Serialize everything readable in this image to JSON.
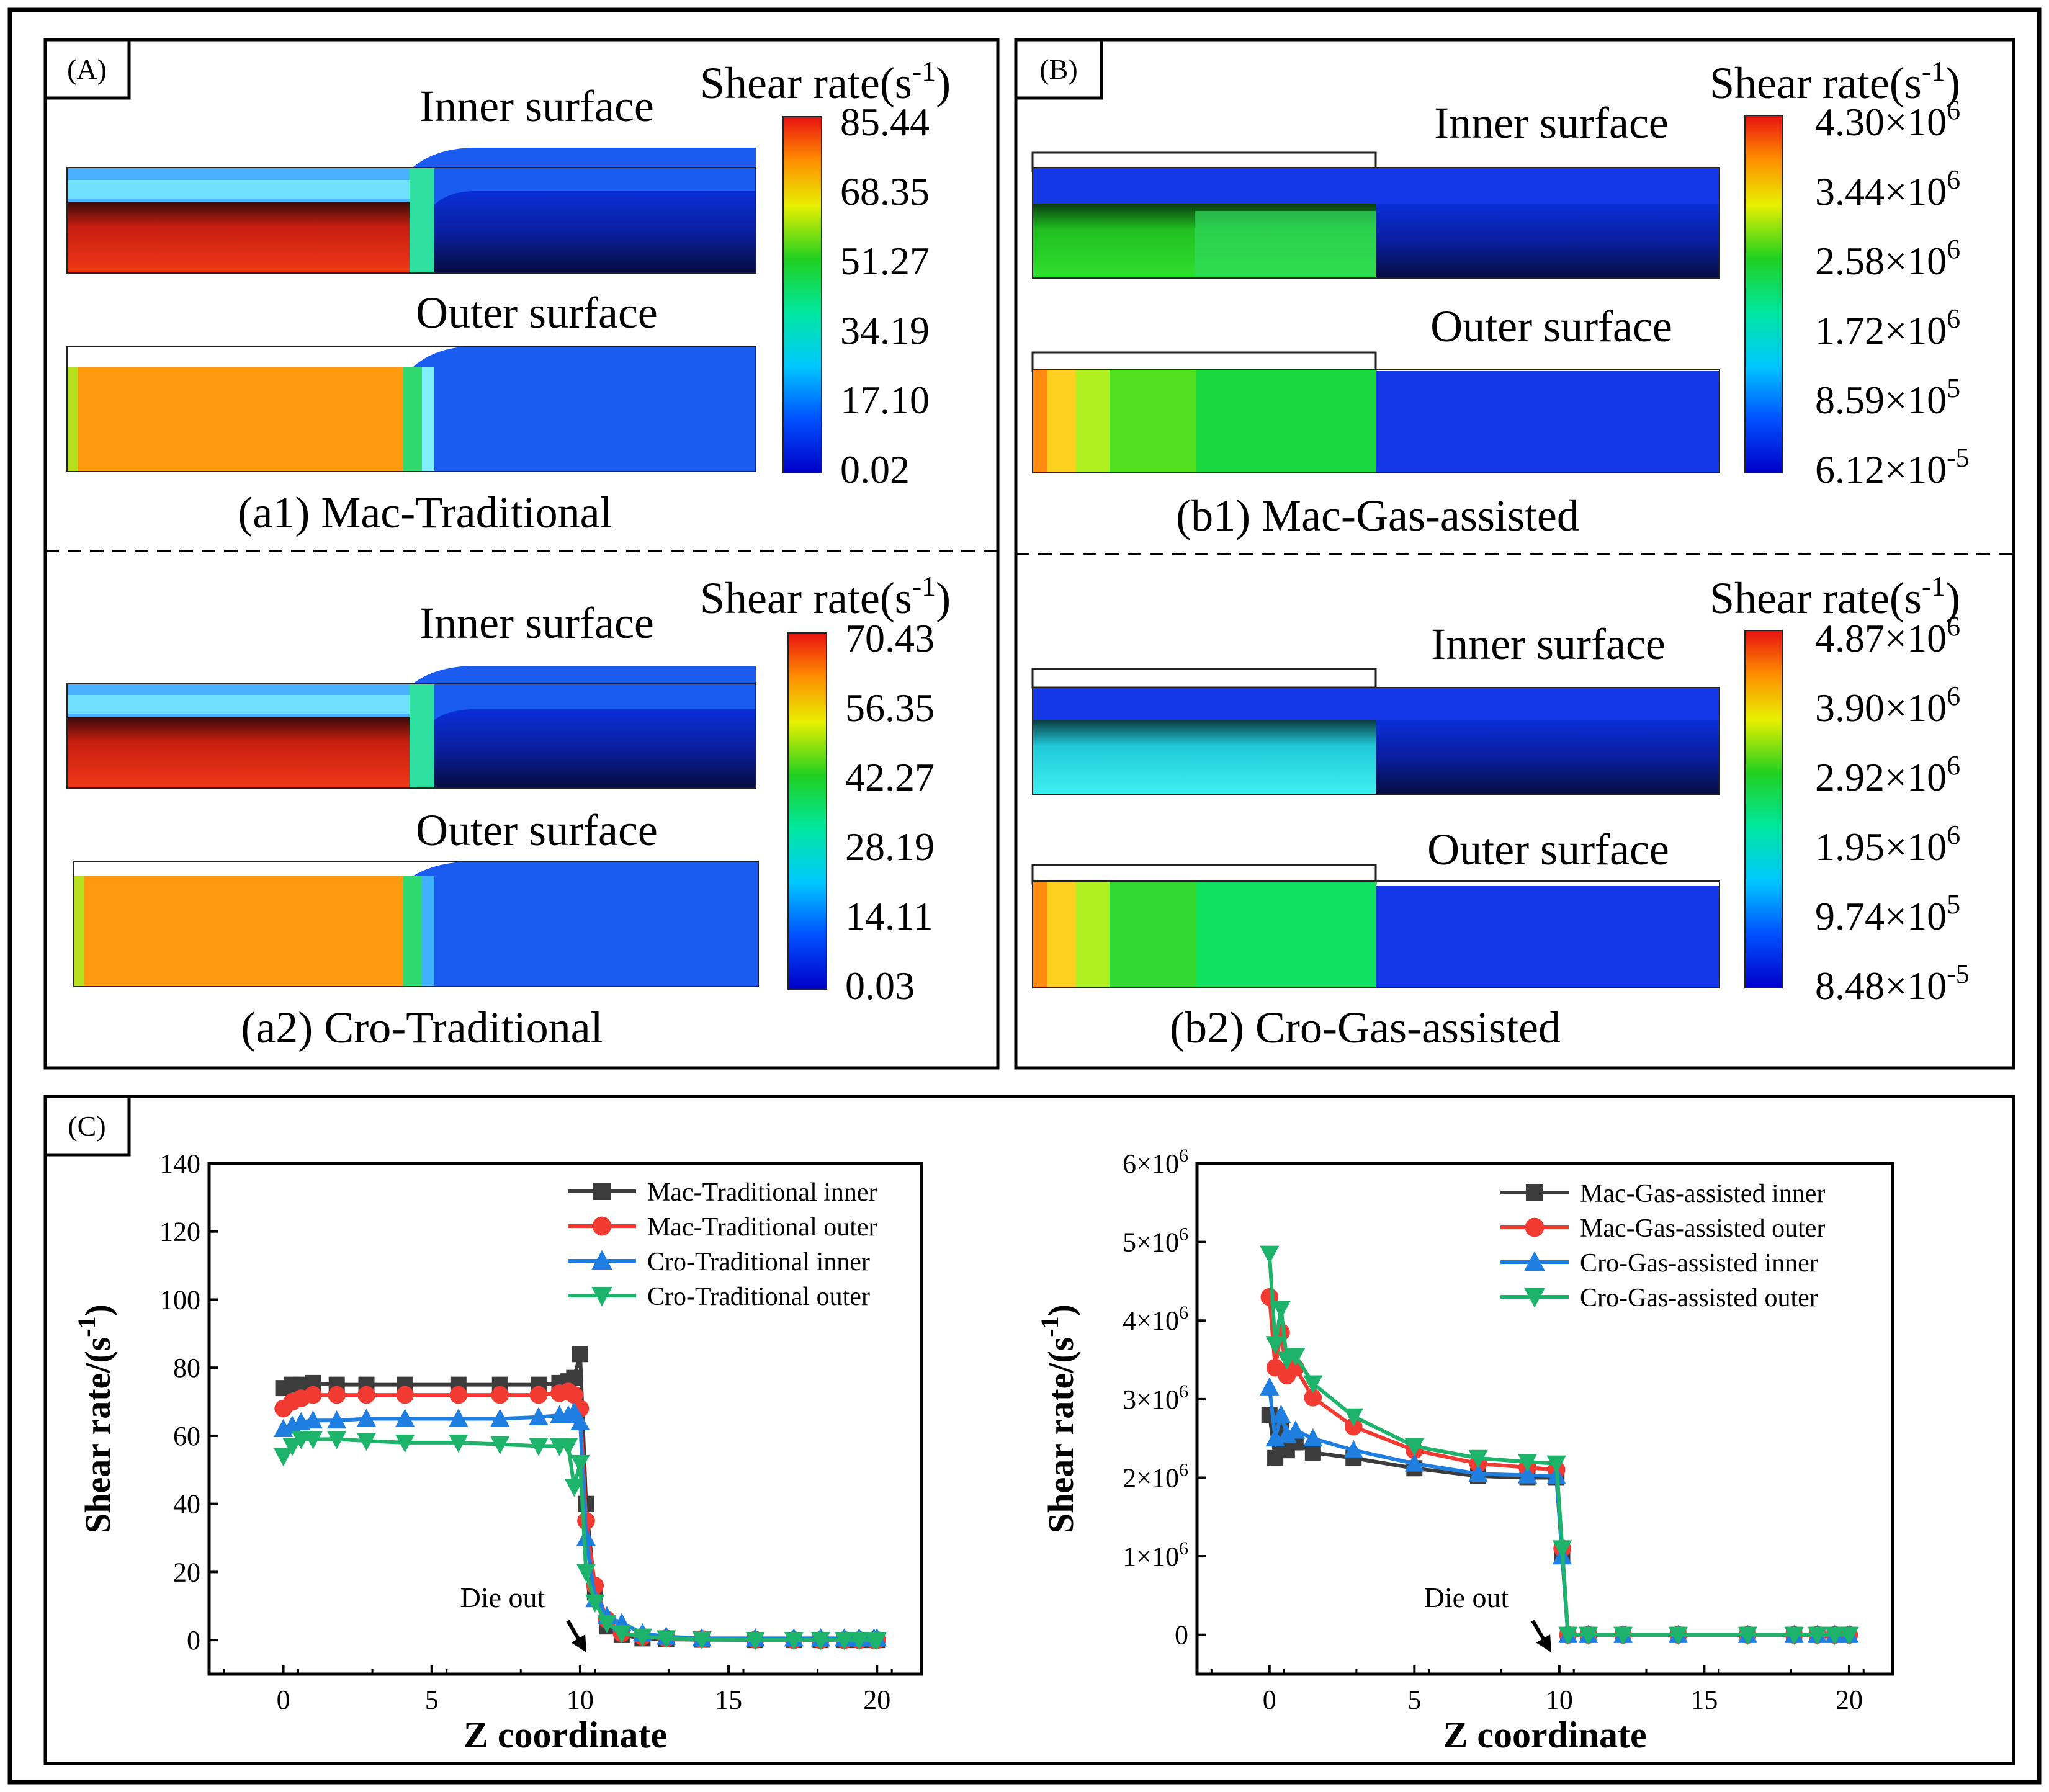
{
  "panelA": {
    "label": "(A)",
    "top": {
      "inner_label": "Inner surface",
      "outer_label": "Outer surface",
      "caption": "(a1) Mac-Traditional",
      "legend_title": "Shear rate(s",
      "legend_sup": "-1",
      "legend_close": ")",
      "ticks": [
        "85.44",
        "68.35",
        "51.27",
        "34.19",
        "17.10",
        "0.02"
      ]
    },
    "bottom": {
      "inner_label": "Inner surface",
      "outer_label": "Outer surface",
      "caption": "(a2) Cro-Traditional",
      "legend_title": "Shear rate(s",
      "legend_sup": "-1",
      "legend_close": ")",
      "ticks": [
        "70.43",
        "56.35",
        "42.27",
        "28.19",
        "14.11",
        "0.03"
      ]
    }
  },
  "panelB": {
    "label": "(B)",
    "top": {
      "inner_label": "Inner surface",
      "outer_label": "Outer surface",
      "caption": "(b1) Mac-Gas-assisted",
      "legend_title": "Shear rate(s",
      "legend_sup": "-1",
      "legend_close": ")",
      "ticks": [
        {
          "base": "4.30×10",
          "exp": "6"
        },
        {
          "base": "3.44×10",
          "exp": "6"
        },
        {
          "base": "2.58×10",
          "exp": "6"
        },
        {
          "base": "1.72×10",
          "exp": "6"
        },
        {
          "base": "8.59×10",
          "exp": "5"
        },
        {
          "base": "6.12×10",
          "exp": "-5"
        }
      ]
    },
    "bottom": {
      "inner_label": "Inner surface",
      "outer_label": "Outer surface",
      "caption": "(b2) Cro-Gas-assisted",
      "legend_title": "Shear rate(s",
      "legend_sup": "-1",
      "legend_close": ")",
      "ticks": [
        {
          "base": "4.87×10",
          "exp": "6"
        },
        {
          "base": "3.90×10",
          "exp": "6"
        },
        {
          "base": "2.92×10",
          "exp": "6"
        },
        {
          "base": "1.95×10",
          "exp": "6"
        },
        {
          "base": "9.74×10",
          "exp": "5"
        },
        {
          "base": "8.48×10",
          "exp": "-5"
        }
      ]
    }
  },
  "panelC": {
    "label": "(C)"
  },
  "colors": {
    "black": "#3c3c3c",
    "red": "#f03a32",
    "blue": "#1f7fe0",
    "green": "#1db36b"
  },
  "chart_data": [
    {
      "type": "line",
      "title": "",
      "xlabel": "Z coordinate",
      "ylabel_prefix": "Shear rate/(s",
      "ylabel_sup": "-1",
      "ylabel_suffix": ")",
      "xlim": [
        -2.5,
        21.5
      ],
      "ylim": [
        -10,
        140
      ],
      "xticks": [
        "0",
        "5",
        "10",
        "15",
        "20"
      ],
      "yticks": [
        "0",
        "20",
        "40",
        "60",
        "80",
        "100",
        "120",
        "140"
      ],
      "annotation": "Die out",
      "series": [
        {
          "name": "Mac-Traditional inner",
          "marker": "square",
          "color": "#3c3c3c",
          "x": [
            0,
            0.3,
            0.6,
            1.0,
            1.8,
            2.8,
            4.1,
            5.9,
            7.3,
            8.6,
            9.3,
            9.6,
            9.8,
            10.0,
            10.2,
            10.5,
            10.9,
            11.4,
            12.1,
            12.9,
            14.1,
            15.9,
            17.2,
            18.1,
            18.9,
            19.4,
            19.9,
            20.0
          ],
          "y": [
            74,
            75,
            75,
            75.5,
            75,
            75,
            75,
            75,
            75,
            75,
            75.5,
            76,
            77,
            84,
            40,
            14,
            4,
            1.5,
            0.5,
            0.2,
            0.1,
            0,
            0,
            0,
            0,
            0,
            0,
            0
          ]
        },
        {
          "name": "Mac-Traditional outer",
          "marker": "circle",
          "color": "#f03a32",
          "x": [
            0,
            0.3,
            0.6,
            1.0,
            1.8,
            2.8,
            4.1,
            5.9,
            7.3,
            8.6,
            9.3,
            9.6,
            9.8,
            10.0,
            10.2,
            10.5,
            10.9,
            11.4,
            12.1,
            12.9,
            14.1,
            15.9,
            17.2,
            18.1,
            18.9,
            19.4,
            19.9,
            20.0
          ],
          "y": [
            68,
            70,
            71,
            72,
            72,
            72,
            72,
            72,
            72,
            72,
            72.5,
            73,
            72,
            68,
            35,
            16,
            6,
            2,
            1,
            0.5,
            0.3,
            0.1,
            0,
            0,
            0,
            0,
            0,
            0
          ]
        },
        {
          "name": "Cro-Traditional inner",
          "marker": "triangle-up",
          "color": "#1f7fe0",
          "x": [
            0,
            0.3,
            0.6,
            1.0,
            1.8,
            2.8,
            4.1,
            5.9,
            7.3,
            8.6,
            9.3,
            9.6,
            9.8,
            10.0,
            10.2,
            10.5,
            10.9,
            11.4,
            12.1,
            12.9,
            14.1,
            15.9,
            17.2,
            18.1,
            18.9,
            19.4,
            19.9,
            20.0
          ],
          "y": [
            62,
            63,
            64,
            64.5,
            64.5,
            65,
            65,
            65,
            65,
            65.5,
            66,
            66,
            67,
            64,
            30,
            12,
            7,
            5,
            2,
            1,
            0.5,
            0.5,
            0.5,
            0.5,
            0.5,
            0.5,
            0.5,
            0.5
          ]
        },
        {
          "name": "Cro-Traditional outer",
          "marker": "triangle-down",
          "color": "#1db36b",
          "x": [
            0,
            0.3,
            0.6,
            1.0,
            1.8,
            2.8,
            4.1,
            5.9,
            7.3,
            8.6,
            9.3,
            9.6,
            9.8,
            10.0,
            10.2,
            10.5,
            10.9,
            11.4,
            12.1,
            12.9,
            14.1,
            15.9,
            17.2,
            18.1,
            18.9,
            19.4,
            19.9,
            20.0
          ],
          "y": [
            54,
            57,
            59,
            59,
            59,
            58.5,
            58,
            58,
            57.5,
            57,
            57,
            57,
            45,
            52,
            20,
            11,
            5,
            2,
            1,
            0.5,
            0.2,
            0,
            0,
            0,
            0,
            0,
            0,
            0
          ]
        }
      ]
    },
    {
      "type": "line",
      "title": "",
      "xlabel": "Z coordinate",
      "ylabel_prefix": "Shear rate/(s",
      "ylabel_sup": "-1",
      "ylabel_suffix": ")",
      "xlim": [
        -2.5,
        21.5
      ],
      "ylim": [
        -500000,
        6000000
      ],
      "xticks": [
        "0",
        "5",
        "10",
        "15",
        "20"
      ],
      "yticks": [
        {
          "base": "0",
          "exp": ""
        },
        {
          "base": "1×10",
          "exp": "6"
        },
        {
          "base": "2×10",
          "exp": "6"
        },
        {
          "base": "3×10",
          "exp": "6"
        },
        {
          "base": "4×10",
          "exp": "6"
        },
        {
          "base": "5×10",
          "exp": "6"
        },
        {
          "base": "6×10",
          "exp": "6"
        }
      ],
      "annotation": "Die out",
      "series": [
        {
          "name": "Mac-Gas-assisted inner",
          "marker": "square",
          "color": "#3c3c3c",
          "x": [
            0,
            0.2,
            0.4,
            0.6,
            0.9,
            1.5,
            2.9,
            5.0,
            7.2,
            8.9,
            9.9,
            10.1,
            10.3,
            11.0,
            12.2,
            14.1,
            16.5,
            18.1,
            18.9,
            19.5,
            20.0
          ],
          "y": [
            2800000,
            2250000,
            2600000,
            2350000,
            2450000,
            2320000,
            2250000,
            2120000,
            2020000,
            2000000,
            2000000,
            1000000,
            0,
            0,
            0,
            0,
            0,
            0,
            0,
            0,
            0
          ]
        },
        {
          "name": "Mac-Gas-assisted outer",
          "marker": "circle",
          "color": "#f03a32",
          "x": [
            0,
            0.2,
            0.4,
            0.6,
            0.9,
            1.5,
            2.9,
            5.0,
            7.2,
            8.9,
            9.9,
            10.1,
            10.3,
            11.0,
            12.2,
            14.1,
            16.5,
            18.1,
            18.9,
            19.5,
            20.0
          ],
          "y": [
            4300000,
            3400000,
            3850000,
            3300000,
            3400000,
            3020000,
            2650000,
            2350000,
            2180000,
            2130000,
            2100000,
            1100000,
            0,
            0,
            0,
            0,
            0,
            0,
            0,
            0,
            0
          ]
        },
        {
          "name": "Cro-Gas-assisted inner",
          "marker": "triangle-up",
          "color": "#1f7fe0",
          "x": [
            0,
            0.2,
            0.4,
            0.6,
            0.9,
            1.5,
            2.9,
            5.0,
            7.2,
            8.9,
            9.9,
            10.1,
            10.3,
            11.0,
            12.2,
            14.1,
            16.5,
            18.1,
            18.9,
            19.5,
            20.0
          ],
          "y": [
            3150000,
            2500000,
            2800000,
            2550000,
            2600000,
            2500000,
            2350000,
            2180000,
            2050000,
            2030000,
            2020000,
            1000000,
            0,
            0,
            0,
            0,
            0,
            0,
            0,
            0,
            0
          ]
        },
        {
          "name": "Cro-Gas-assisted outer",
          "marker": "triangle-down",
          "color": "#1db36b",
          "x": [
            0,
            0.2,
            0.4,
            0.6,
            0.9,
            1.5,
            2.9,
            5.0,
            7.2,
            8.9,
            9.9,
            10.1,
            10.3,
            11.0,
            12.2,
            14.1,
            16.5,
            18.1,
            18.9,
            19.5,
            20.0
          ],
          "y": [
            4850000,
            3700000,
            4150000,
            3500000,
            3550000,
            3200000,
            2780000,
            2400000,
            2250000,
            2200000,
            2180000,
            1100000,
            0,
            0,
            0,
            0,
            0,
            0,
            0,
            0,
            0
          ]
        }
      ]
    }
  ]
}
